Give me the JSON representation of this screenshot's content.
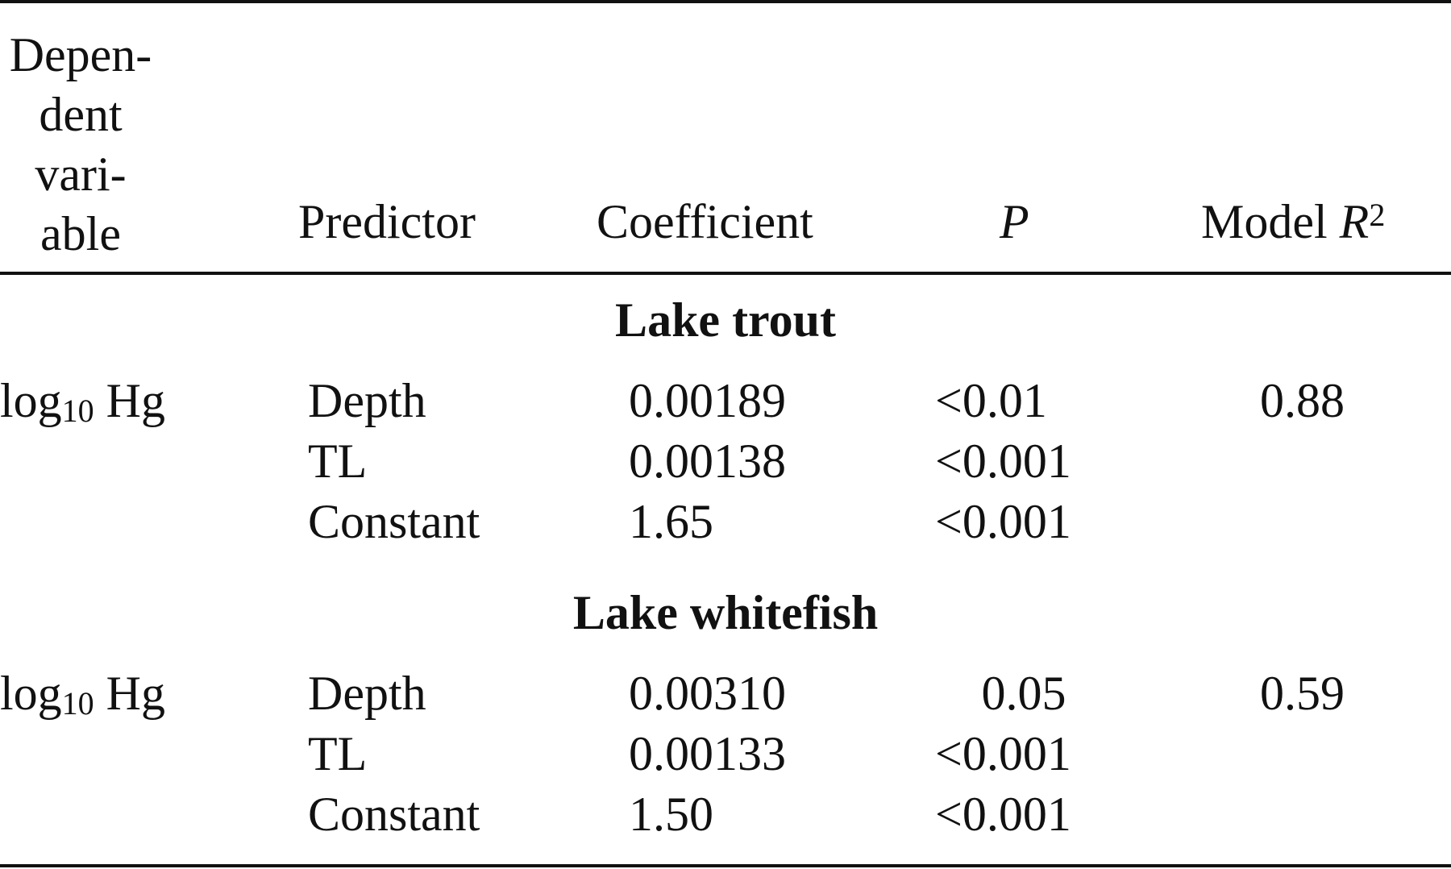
{
  "header": {
    "dependent_variable_lines": [
      "Depen-",
      "dent",
      "vari-",
      "able"
    ],
    "predictor": "Predictor",
    "coefficient": "Coefficient",
    "p": "P",
    "model_r2_prefix": "Model",
    "model_r2_symbol": "R",
    "model_r2_sup": "2"
  },
  "sections": [
    {
      "title": "Lake trout",
      "dependent_prefix": "log",
      "dependent_sub": "10",
      "dependent_suffix": "Hg",
      "model_r2": "0.88",
      "rows": [
        {
          "predictor": "Depth",
          "coefficient": "0.00189",
          "p": "<0.01"
        },
        {
          "predictor": "TL",
          "coefficient": "0.00138",
          "p": "<0.001"
        },
        {
          "predictor": "Constant",
          "coefficient": "1.65",
          "p": "<0.001"
        }
      ]
    },
    {
      "title": "Lake whitefish",
      "dependent_prefix": "log",
      "dependent_sub": "10",
      "dependent_suffix": "Hg",
      "model_r2": "0.59",
      "rows": [
        {
          "predictor": "Depth",
          "coefficient": "0.00310",
          "p": "0.05"
        },
        {
          "predictor": "TL",
          "coefficient": "0.00133",
          "p": "<0.001"
        },
        {
          "predictor": "Constant",
          "coefficient": "1.50",
          "p": "<0.001"
        }
      ]
    }
  ]
}
